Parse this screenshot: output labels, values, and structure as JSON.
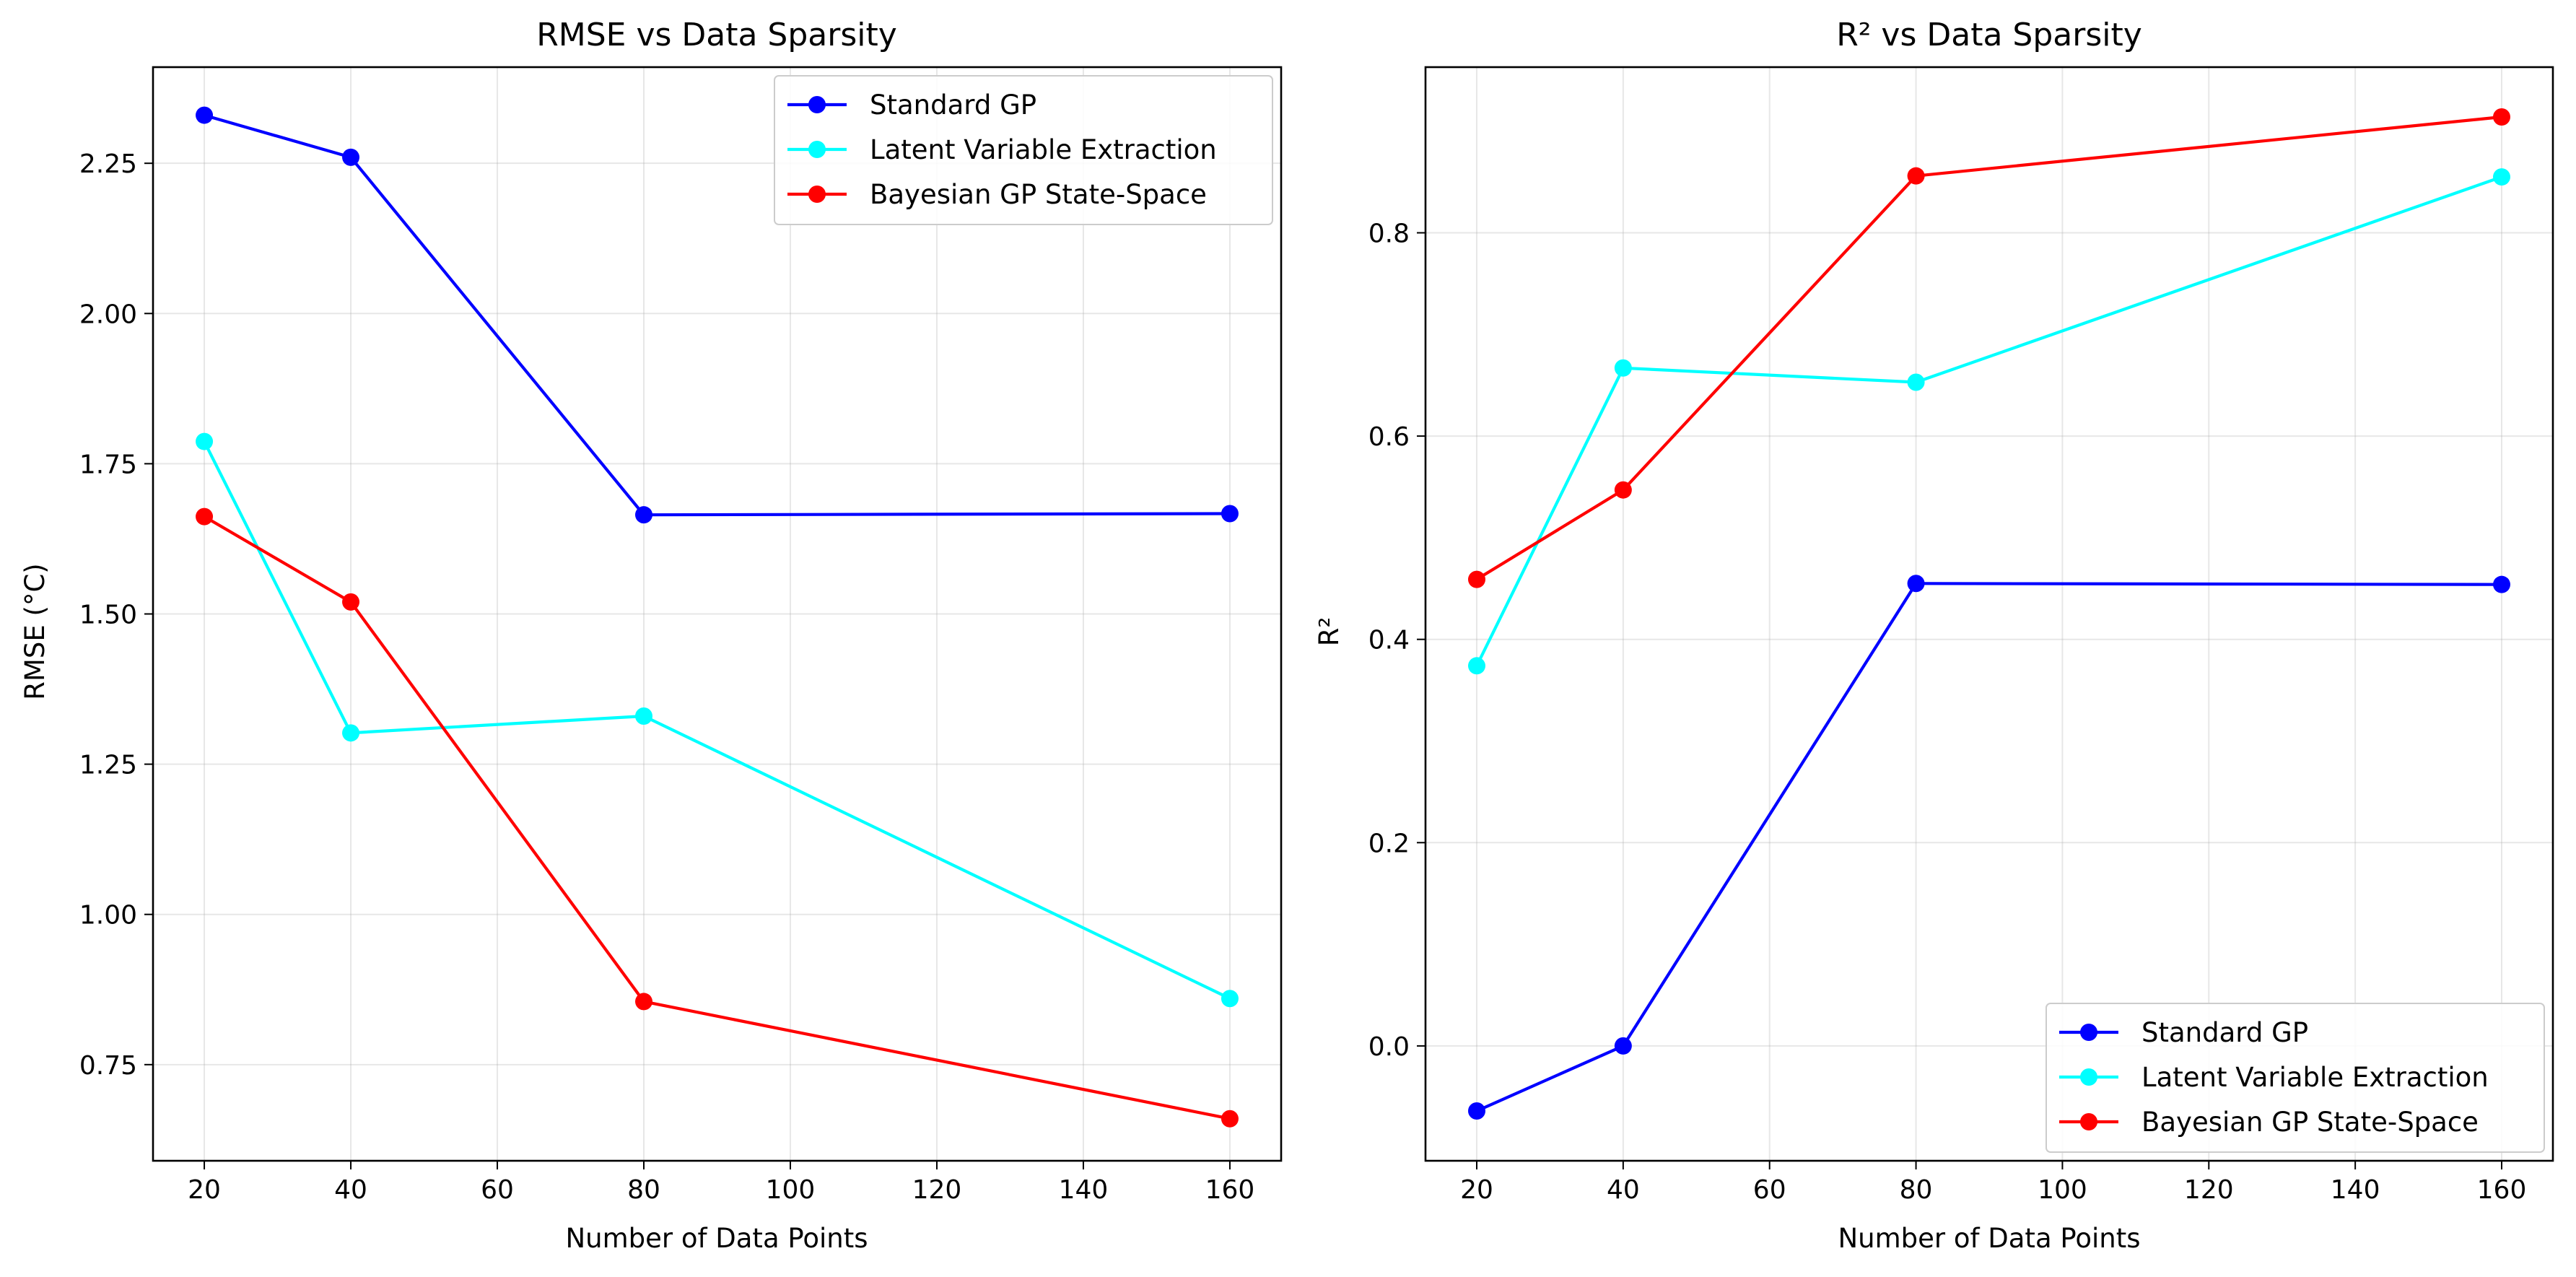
{
  "chart_data": [
    {
      "type": "line",
      "title": "RMSE vs Data Sparsity",
      "xlabel": "Number of Data Points",
      "ylabel": "RMSE (°C)",
      "x": [
        20,
        40,
        80,
        160
      ],
      "xlim": [
        13,
        167
      ],
      "ylim": [
        0.59,
        2.41
      ],
      "xticks": [
        20,
        40,
        60,
        80,
        100,
        120,
        140,
        160
      ],
      "yticks": [
        0.75,
        1.0,
        1.25,
        1.5,
        1.75,
        2.0,
        2.25
      ],
      "ytick_labels": [
        "0.75",
        "1.00",
        "1.25",
        "1.50",
        "1.75",
        "2.00",
        "2.25"
      ],
      "grid": true,
      "legend_position": "top-right",
      "series": [
        {
          "name": "Standard GP",
          "color": "#0000ff",
          "values": [
            2.33,
            2.26,
            1.665,
            1.667
          ]
        },
        {
          "name": "Latent Variable Extraction",
          "color": "#00ffff",
          "values": [
            1.787,
            1.302,
            1.33,
            0.86
          ]
        },
        {
          "name": "Bayesian GP State-Space",
          "color": "#ff0000",
          "values": [
            1.662,
            1.52,
            0.855,
            0.66
          ]
        }
      ]
    },
    {
      "type": "line",
      "title": "R² vs Data Sparsity",
      "xlabel": "Number of Data Points",
      "ylabel": "R²",
      "x": [
        20,
        40,
        80,
        160
      ],
      "xlim": [
        13,
        167
      ],
      "ylim": [
        -0.113,
        0.963
      ],
      "xticks": [
        20,
        40,
        60,
        80,
        100,
        120,
        140,
        160
      ],
      "yticks": [
        0.0,
        0.2,
        0.4,
        0.6,
        0.8
      ],
      "ytick_labels": [
        "0.0",
        "0.2",
        "0.4",
        "0.6",
        "0.8"
      ],
      "grid": true,
      "legend_position": "bottom-right",
      "series": [
        {
          "name": "Standard GP",
          "color": "#0000ff",
          "values": [
            -0.064,
            0.0,
            0.455,
            0.454
          ]
        },
        {
          "name": "Latent Variable Extraction",
          "color": "#00ffff",
          "values": [
            0.374,
            0.667,
            0.653,
            0.855
          ]
        },
        {
          "name": "Bayesian GP State-Space",
          "color": "#ff0000",
          "values": [
            0.459,
            0.547,
            0.856,
            0.914
          ]
        }
      ]
    }
  ]
}
